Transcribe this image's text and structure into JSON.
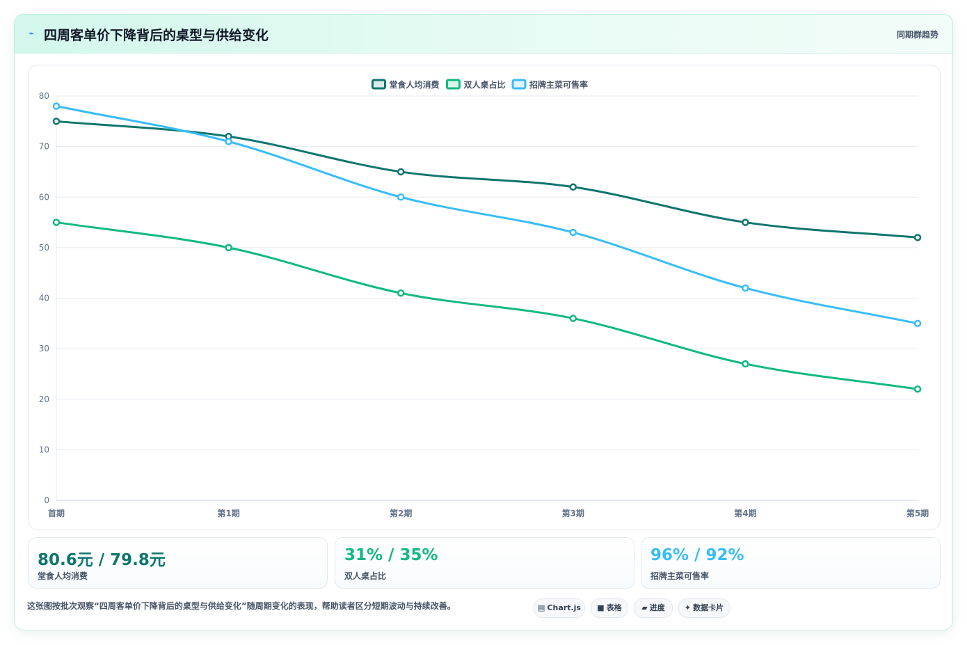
{
  "header": {
    "icon": "lightning-icon",
    "title": "四周客单价下降背后的桌型与供给变化",
    "subtitle": "同期群趋势"
  },
  "chart_data": {
    "type": "line",
    "categories": [
      "首期",
      "第1期",
      "第2期",
      "第3期",
      "第4期",
      "第5期"
    ],
    "series": [
      {
        "name": "堂食人均消费",
        "color": "#0f766e",
        "values": [
          75,
          72,
          65,
          62,
          55,
          52
        ]
      },
      {
        "name": "双人桌占比",
        "color": "#10b981",
        "values": [
          55,
          50,
          41,
          36,
          27,
          22
        ]
      },
      {
        "name": "招牌主菜可售率",
        "color": "#38bdf8",
        "values": [
          78,
          71,
          60,
          53,
          42,
          35
        ]
      }
    ],
    "ylim": [
      0,
      80
    ],
    "yticks": [
      0,
      10,
      20,
      30,
      40,
      50,
      60,
      70,
      80
    ],
    "grid": true,
    "legend_position": "top-center",
    "xlabel": "",
    "ylabel": ""
  },
  "kpis": [
    {
      "value": "80.6元 / 79.8元",
      "label": "堂食人均消费",
      "color": "#0f766e"
    },
    {
      "value": "31% / 35%",
      "label": "双人桌占比",
      "color": "#10b981"
    },
    {
      "value": "96% / 92%",
      "label": "招牌主菜可售率",
      "color": "#38bdf8"
    }
  ],
  "footnote": "这张图按批次观察“四周客单价下降背后的桌型与供给变化”随周期变化的表现，帮助读者区分短期波动与持续改善。",
  "chips": [
    {
      "icon": "▤",
      "label": "Chart.js"
    },
    {
      "icon": "■",
      "label": "表格"
    },
    {
      "icon": "▰",
      "label": "进度"
    },
    {
      "icon": "✦",
      "label": "数据卡片"
    }
  ]
}
